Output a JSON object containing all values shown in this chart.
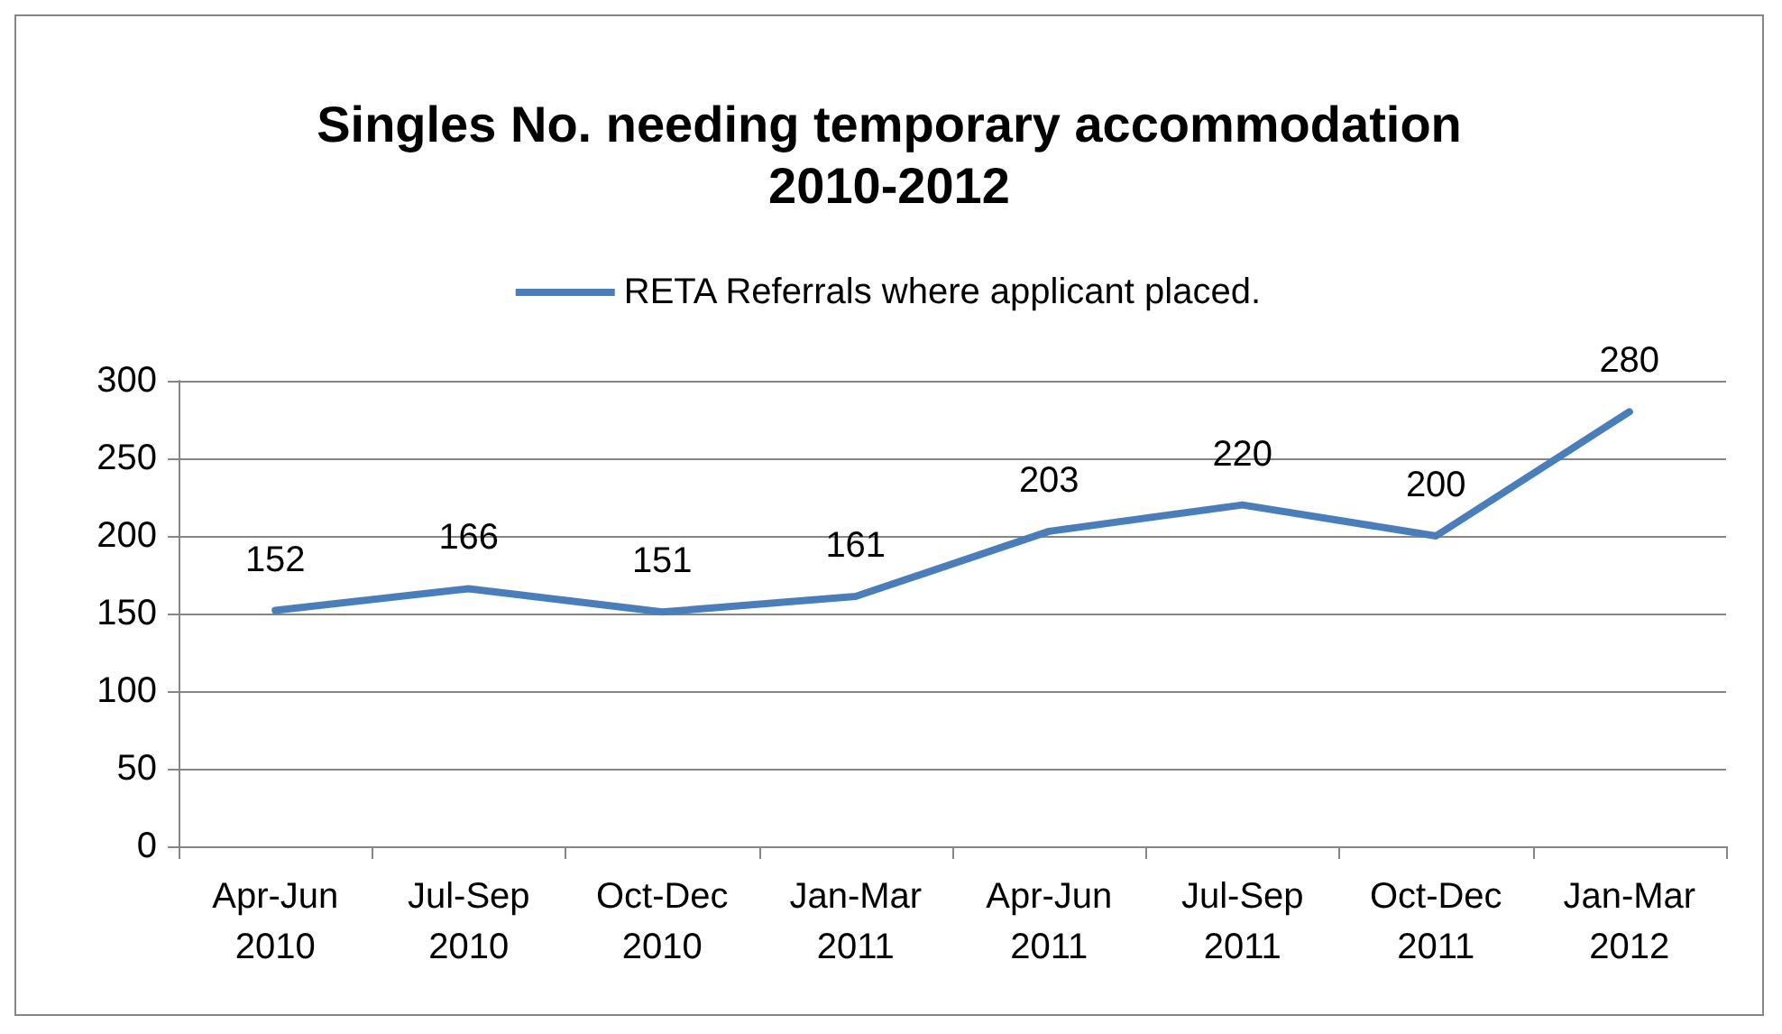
{
  "chart_data": {
    "type": "line",
    "title": "Singles No. needing temporary accommodation\n2010-2012",
    "categories": [
      "Apr-Jun\n2010",
      "Jul-Sep\n2010",
      "Oct-Dec\n2010",
      "Jan-Mar\n2011",
      "Apr-Jun\n2011",
      "Jul-Sep\n2011",
      "Oct-Dec\n2011",
      "Jan-Mar\n2012"
    ],
    "series": [
      {
        "name": "RETA Referrals where applicant placed.",
        "color": "#4a7ebb",
        "values": [
          152,
          166,
          151,
          161,
          203,
          220,
          200,
          280
        ]
      }
    ],
    "ylim": [
      0,
      300
    ],
    "yticks": [
      0,
      50,
      100,
      150,
      200,
      250,
      300
    ],
    "grid": "y",
    "legend": "top",
    "marker": "none",
    "line_style": "solid",
    "data_labels": true
  }
}
